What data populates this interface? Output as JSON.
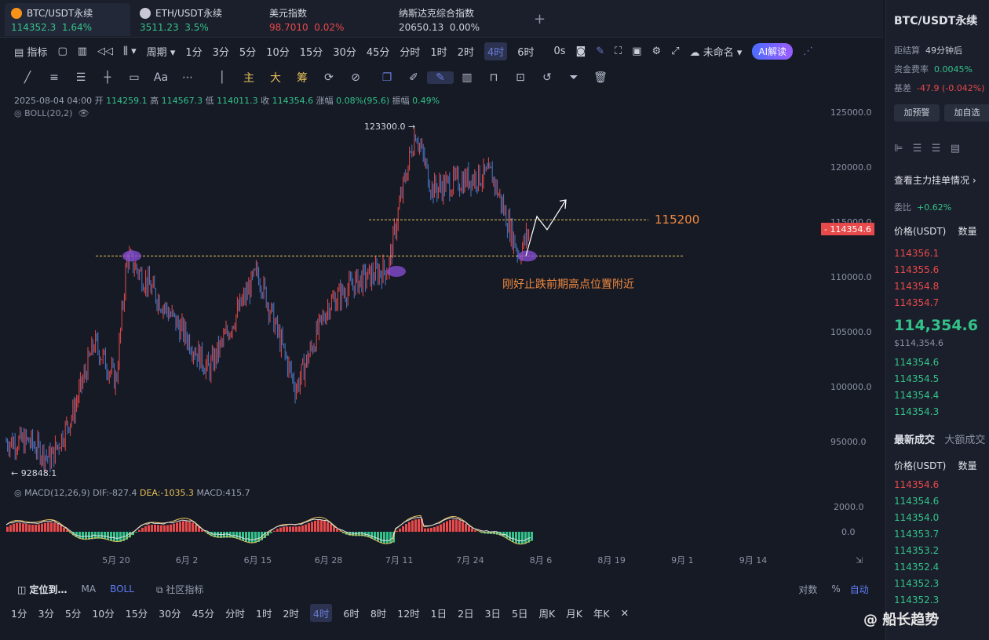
{
  "tabs": [
    {
      "name": "BTC/USDT永续",
      "price": "114352.3",
      "change": "1.64%"
    },
    {
      "name": "ETH/USDT永续",
      "price": "3511.23",
      "change": "3.5%"
    },
    {
      "name": "美元指数",
      "price": "98.7010",
      "change": "0.02%"
    },
    {
      "name": "纳斯达克综合指数",
      "price": "20650.13",
      "change": "0.00%"
    }
  ],
  "toolbar": {
    "indicator": "指标",
    "period": "周期",
    "intervals": [
      "1分",
      "3分",
      "5分",
      "10分",
      "15分",
      "30分",
      "45分",
      "分时",
      "1时",
      "2时",
      "4时",
      "6时"
    ],
    "selected_interval": "4时",
    "seconds": "0s",
    "unnamed": "未命名",
    "ai": "AI解读"
  },
  "drawtools": {
    "zhu": "主",
    "da": "大",
    "chou": "筹",
    "aa": "Aa"
  },
  "ohlc": {
    "date": "2025-08-04 04:00",
    "open_label": "开",
    "open": "114259.1",
    "high_label": "高",
    "high": "114567.3",
    "low_label": "低",
    "low": "114011.3",
    "close_label": "收",
    "close": "114354.6",
    "change_label": "涨幅",
    "change": "0.08%(95.6)",
    "amp_label": "振幅",
    "amp": "0.49%"
  },
  "boll_label": "BOLL(20,2)",
  "annotations": {
    "high": "123300.0 →",
    "low": "← 92848.1",
    "level": "115200",
    "note": "刚好止跌前期高点位置附近",
    "current_price": "114354.6"
  },
  "macd": {
    "label": "MACD(12,26,9)",
    "dif": "DIF:-827.4",
    "dea": "DEA:-1035.3",
    "macd": "MACD:415.7",
    "axis": [
      "2000.0",
      "0.0"
    ]
  },
  "chart_data": {
    "type": "candlestick",
    "y_axis_ticks": [
      125000,
      120000,
      115000,
      110000,
      105000,
      100000,
      95000
    ],
    "y_axis_labels": [
      "125000.0",
      "120000.0",
      "115000.0",
      "110000.0",
      "105000.0",
      "100000.0",
      "95000.0"
    ],
    "x_axis_labels": [
      "5月 20",
      "6月 2",
      "6月 15",
      "6月 28",
      "7月 11",
      "7月 24",
      "8月 6",
      "8月 19",
      "9月 1",
      "9月 14"
    ],
    "ylim": [
      91000,
      126500
    ],
    "horizontal_levels": [
      111900,
      115200
    ],
    "approx_path": [
      [
        "5月 20",
        100500
      ],
      [
        "5月 22",
        111900
      ],
      [
        "6月 2",
        104500
      ],
      [
        "6月 6",
        101500
      ],
      [
        "6月 15",
        110500
      ],
      [
        "6月 22",
        99800
      ],
      [
        "6月 28",
        107500
      ],
      [
        "7月 3",
        109500
      ],
      [
        "7月 9",
        110800
      ],
      [
        "7月 11",
        116500
      ],
      [
        "7月 14",
        123300
      ],
      [
        "7月 17",
        118000
      ],
      [
        "7月 24",
        119000
      ],
      [
        "7月 28",
        119300
      ],
      [
        "8月 2",
        112000
      ],
      [
        "8月 4",
        114354.6
      ]
    ]
  },
  "bottom": {
    "locate": "定位到…",
    "ma": "MA",
    "boll": "BOLL",
    "community": "社区指标",
    "log": "对数",
    "pct": "%",
    "auto": "自动"
  },
  "periods": [
    "1分",
    "3分",
    "5分",
    "10分",
    "15分",
    "30分",
    "45分",
    "分时",
    "1时",
    "2时",
    "4时",
    "6时",
    "8时",
    "12时",
    "1日",
    "2日",
    "3日",
    "5日",
    "周K",
    "月K",
    "年K"
  ],
  "selected_period": "4时",
  "right": {
    "title": "BTC/USDT永续",
    "settle_label": "距结算",
    "settle": "49分钟后",
    "funding_label": "资金费率",
    "funding": "0.0045%",
    "basis_label": "基差",
    "basis": "-47.9 (-0.042%)",
    "alert_btn": "加预警",
    "fav_btn": "加自选",
    "orders_title": "查看主力挂单情况",
    "ratio_label": "委比",
    "ratio": "+0.62%",
    "price_hdr": "价格(USDT)",
    "qty_hdr": "数量",
    "asks": [
      "114356.1",
      "114355.6",
      "114354.8",
      "114354.7"
    ],
    "last_price": "114,354.6",
    "last_price_fiat": "$114,354.6",
    "bids": [
      "114354.6",
      "114354.5",
      "114354.4",
      "114354.3"
    ],
    "trades_tab": "最新成交",
    "big_tab": "大额成交",
    "trades": [
      {
        "price": "114354.6",
        "side": "sell"
      },
      {
        "price": "114354.6",
        "side": "buy"
      },
      {
        "price": "114354.0",
        "side": "buy"
      },
      {
        "price": "114353.7",
        "side": "buy"
      },
      {
        "price": "114353.2",
        "side": "buy"
      },
      {
        "price": "114352.4",
        "side": "buy"
      },
      {
        "price": "114352.3",
        "side": "buy"
      },
      {
        "price": "114352.3",
        "side": "buy"
      }
    ]
  },
  "watermark": "@ 船长趋势",
  "colors": {
    "up": "#33c28a",
    "down": "#e8494a",
    "level": "#e8c15a",
    "note": "#f0883e",
    "bg": "#161a25"
  }
}
